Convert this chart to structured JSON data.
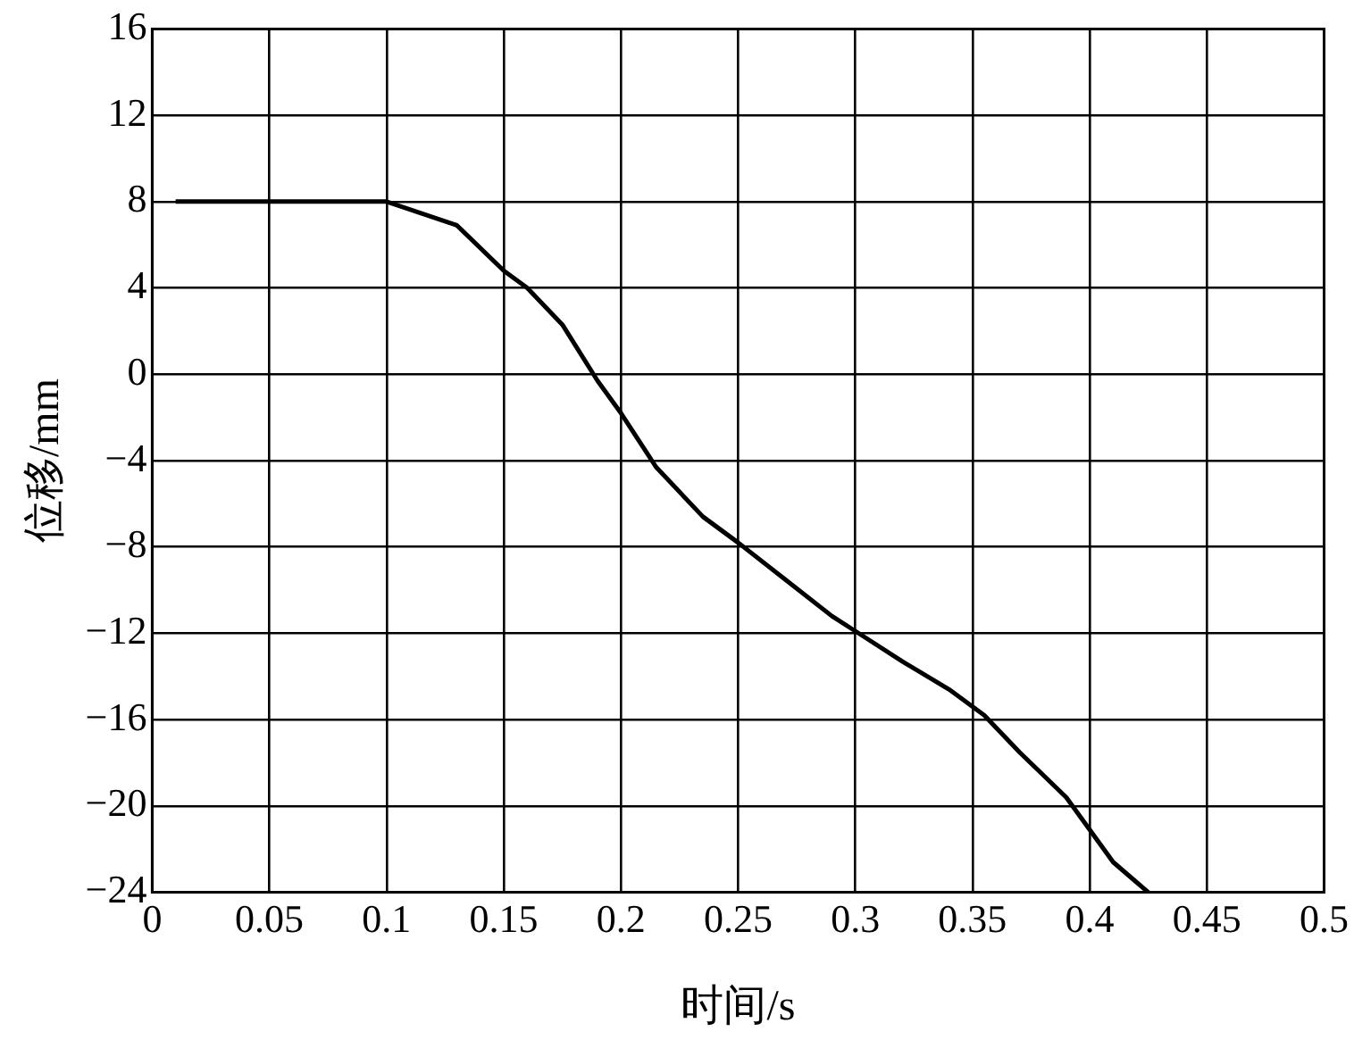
{
  "chart_data": {
    "type": "line",
    "xlabel": "时间/s",
    "ylabel": "位移/mm",
    "xlim": [
      0,
      0.5
    ],
    "xticks": [
      0,
      0.05,
      0.1,
      0.15,
      0.2,
      0.25,
      0.3,
      0.35,
      0.4,
      0.45,
      0.5
    ],
    "ylim": [
      -24,
      16
    ],
    "yticks": [
      {
        "value": -24,
        "label": "−24"
      },
      {
        "value": -20,
        "label": "−20"
      },
      {
        "value": -16,
        "label": "−16"
      },
      {
        "value": -12,
        "label": "−12"
      },
      {
        "value": -8,
        "label": "−8"
      },
      {
        "value": -4,
        "label": "−4"
      },
      0,
      4,
      8,
      12,
      16
    ],
    "grid": true,
    "legend": false,
    "marker": "none",
    "line_style": "solid",
    "series": [
      {
        "color": "#000000",
        "x": [
          0.01,
          0.05,
          0.1,
          0.13,
          0.15,
          0.16,
          0.175,
          0.19,
          0.2,
          0.215,
          0.235,
          0.25,
          0.27,
          0.29,
          0.3,
          0.32,
          0.34,
          0.355,
          0.37,
          0.39,
          0.4,
          0.41,
          0.425
        ],
        "values": [
          8,
          8,
          8,
          6.9,
          4.8,
          4,
          2.3,
          -0.3,
          -1.8,
          -4.3,
          -6.6,
          -7.8,
          -9.5,
          -11.2,
          -11.9,
          -13.3,
          -14.6,
          -15.8,
          -17.5,
          -19.6,
          -21.1,
          -22.6,
          -24
        ]
      }
    ]
  }
}
